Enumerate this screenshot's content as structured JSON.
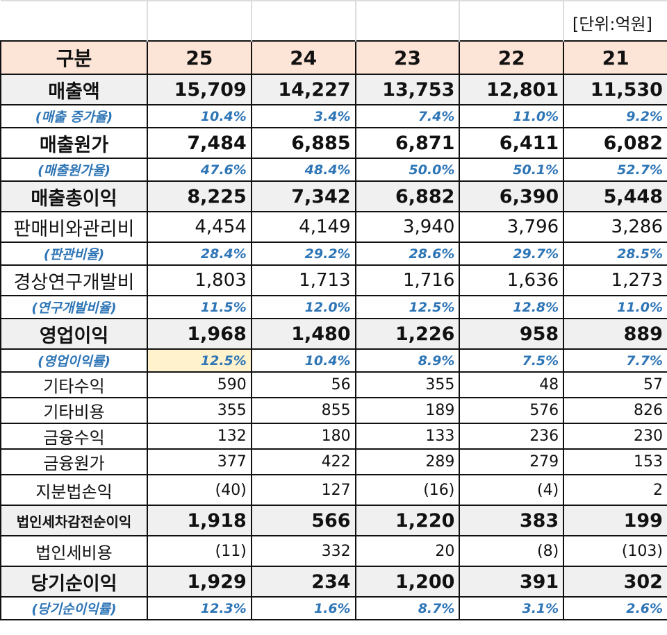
{
  "unit_label": "[단위:억원]",
  "header": {
    "label": "구분",
    "years": [
      "25",
      "24",
      "23",
      "22",
      "21"
    ]
  },
  "rows": [
    {
      "label": "매출액",
      "style": "big-shade",
      "values": [
        "15,709",
        "14,227",
        "13,753",
        "12,801",
        "11,530"
      ]
    },
    {
      "label": "(매출 증가율)",
      "style": "pct",
      "values": [
        "10.4%",
        "3.4%",
        "7.4%",
        "11.0%",
        "9.2%"
      ]
    },
    {
      "label": "매출원가",
      "style": "big",
      "values": [
        "7,484",
        "6,885",
        "6,871",
        "6,411",
        "6,082"
      ]
    },
    {
      "label": "(매출원가율)",
      "style": "pct",
      "values": [
        "47.6%",
        "48.4%",
        "50.0%",
        "50.1%",
        "52.7%"
      ]
    },
    {
      "label": "매출총이익",
      "style": "big-shade",
      "values": [
        "8,225",
        "7,342",
        "6,882",
        "6,390",
        "5,448"
      ]
    },
    {
      "label": "판매비와관리비",
      "style": "mid",
      "values": [
        "4,454",
        "4,149",
        "3,940",
        "3,796",
        "3,286"
      ]
    },
    {
      "label": "(판관비율)",
      "style": "pct",
      "values": [
        "28.4%",
        "29.2%",
        "28.6%",
        "29.7%",
        "28.5%"
      ]
    },
    {
      "label": "경상연구개발비",
      "style": "mid",
      "values": [
        "1,803",
        "1,713",
        "1,716",
        "1,636",
        "1,273"
      ]
    },
    {
      "label": "(연구개발비율)",
      "style": "pct",
      "values": [
        "11.5%",
        "12.0%",
        "12.5%",
        "12.8%",
        "11.0%"
      ]
    },
    {
      "label": "영업이익",
      "style": "big-shade",
      "values": [
        "1,968",
        "1,480",
        "1,226",
        "958",
        "889"
      ]
    },
    {
      "label": "(영업이익률)",
      "style": "pct",
      "highlight_first": true,
      "values": [
        "12.5%",
        "10.4%",
        "8.9%",
        "7.5%",
        "7.7%"
      ]
    },
    {
      "label": "기타수익",
      "style": "small",
      "values": [
        "590",
        "56",
        "355",
        "48",
        "57"
      ]
    },
    {
      "label": "기타비용",
      "style": "small",
      "values": [
        "355",
        "855",
        "189",
        "576",
        "826"
      ]
    },
    {
      "label": "금융수익",
      "style": "small",
      "values": [
        "132",
        "180",
        "133",
        "236",
        "230"
      ]
    },
    {
      "label": "금융원가",
      "style": "small",
      "values": [
        "377",
        "422",
        "289",
        "279",
        "153"
      ]
    },
    {
      "label": "지분법손익",
      "style": "small-tall",
      "values": [
        "(40)",
        "127",
        "(16)",
        "(4)",
        "2"
      ]
    },
    {
      "label": "법인세차감전순이익",
      "style": "big-shade-smalllabel",
      "values": [
        "1,918",
        "566",
        "1,220",
        "383",
        "199"
      ]
    },
    {
      "label": "법인세비용",
      "style": "small-tall",
      "values": [
        "(11)",
        "332",
        "20",
        "(8)",
        "(103)"
      ]
    },
    {
      "label": "당기순이익",
      "style": "big-shade",
      "values": [
        "1,929",
        "234",
        "1,200",
        "391",
        "302"
      ]
    },
    {
      "label": "(당기순이익률)",
      "style": "pct",
      "values": [
        "12.3%",
        "1.6%",
        "8.7%",
        "3.1%",
        "2.6%"
      ]
    }
  ],
  "colors": {
    "header_bg": "#fce4d6",
    "shade_bg": "#f0f0f0",
    "pct_text": "#2e75b6",
    "highlight_bg": "#fff2cc"
  }
}
